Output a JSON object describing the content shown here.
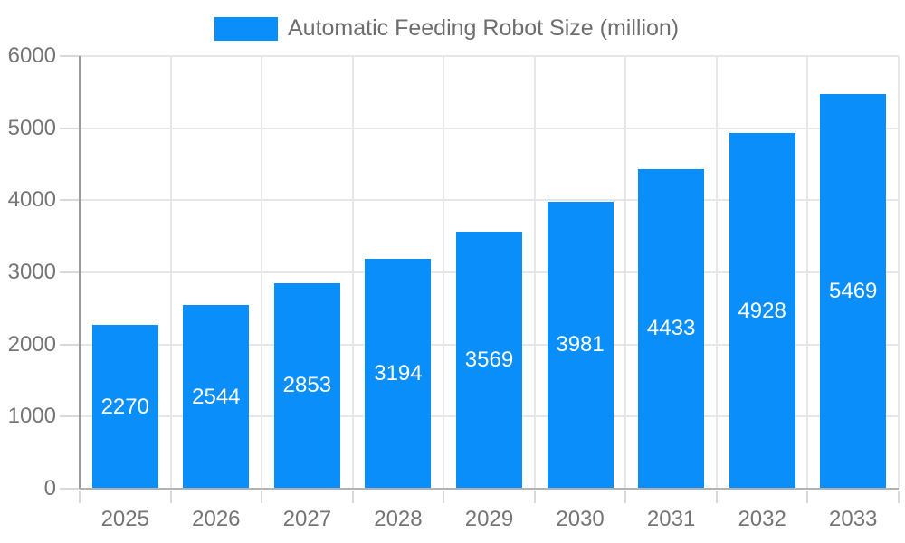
{
  "chart_data": {
    "type": "bar",
    "title": "Automatic Feeding Robot Size (million)",
    "legend": {
      "label": "Automatic Feeding Robot Size (million)",
      "position": "top"
    },
    "categories": [
      "2025",
      "2026",
      "2027",
      "2028",
      "2029",
      "2030",
      "2031",
      "2032",
      "2033"
    ],
    "values": [
      2270,
      2544,
      2853,
      3194,
      3569,
      3981,
      4433,
      4928,
      5469
    ],
    "xlabel": "",
    "ylabel": "",
    "ylim": [
      0,
      6000
    ],
    "yticks": [
      0,
      1000,
      2000,
      3000,
      4000,
      5000,
      6000
    ],
    "grid": true,
    "colors": {
      "bar": "#0a8ef9",
      "bar_label": "#ffffff",
      "axis_text": "#757575",
      "legend_text": "#6e6e6e",
      "grid": "#e7e7e7",
      "tick": "#d9d9d9",
      "y_axis_line": "#9a9a9a",
      "x_axis_line": "#b3b3b3",
      "background": "#ffffff"
    }
  }
}
